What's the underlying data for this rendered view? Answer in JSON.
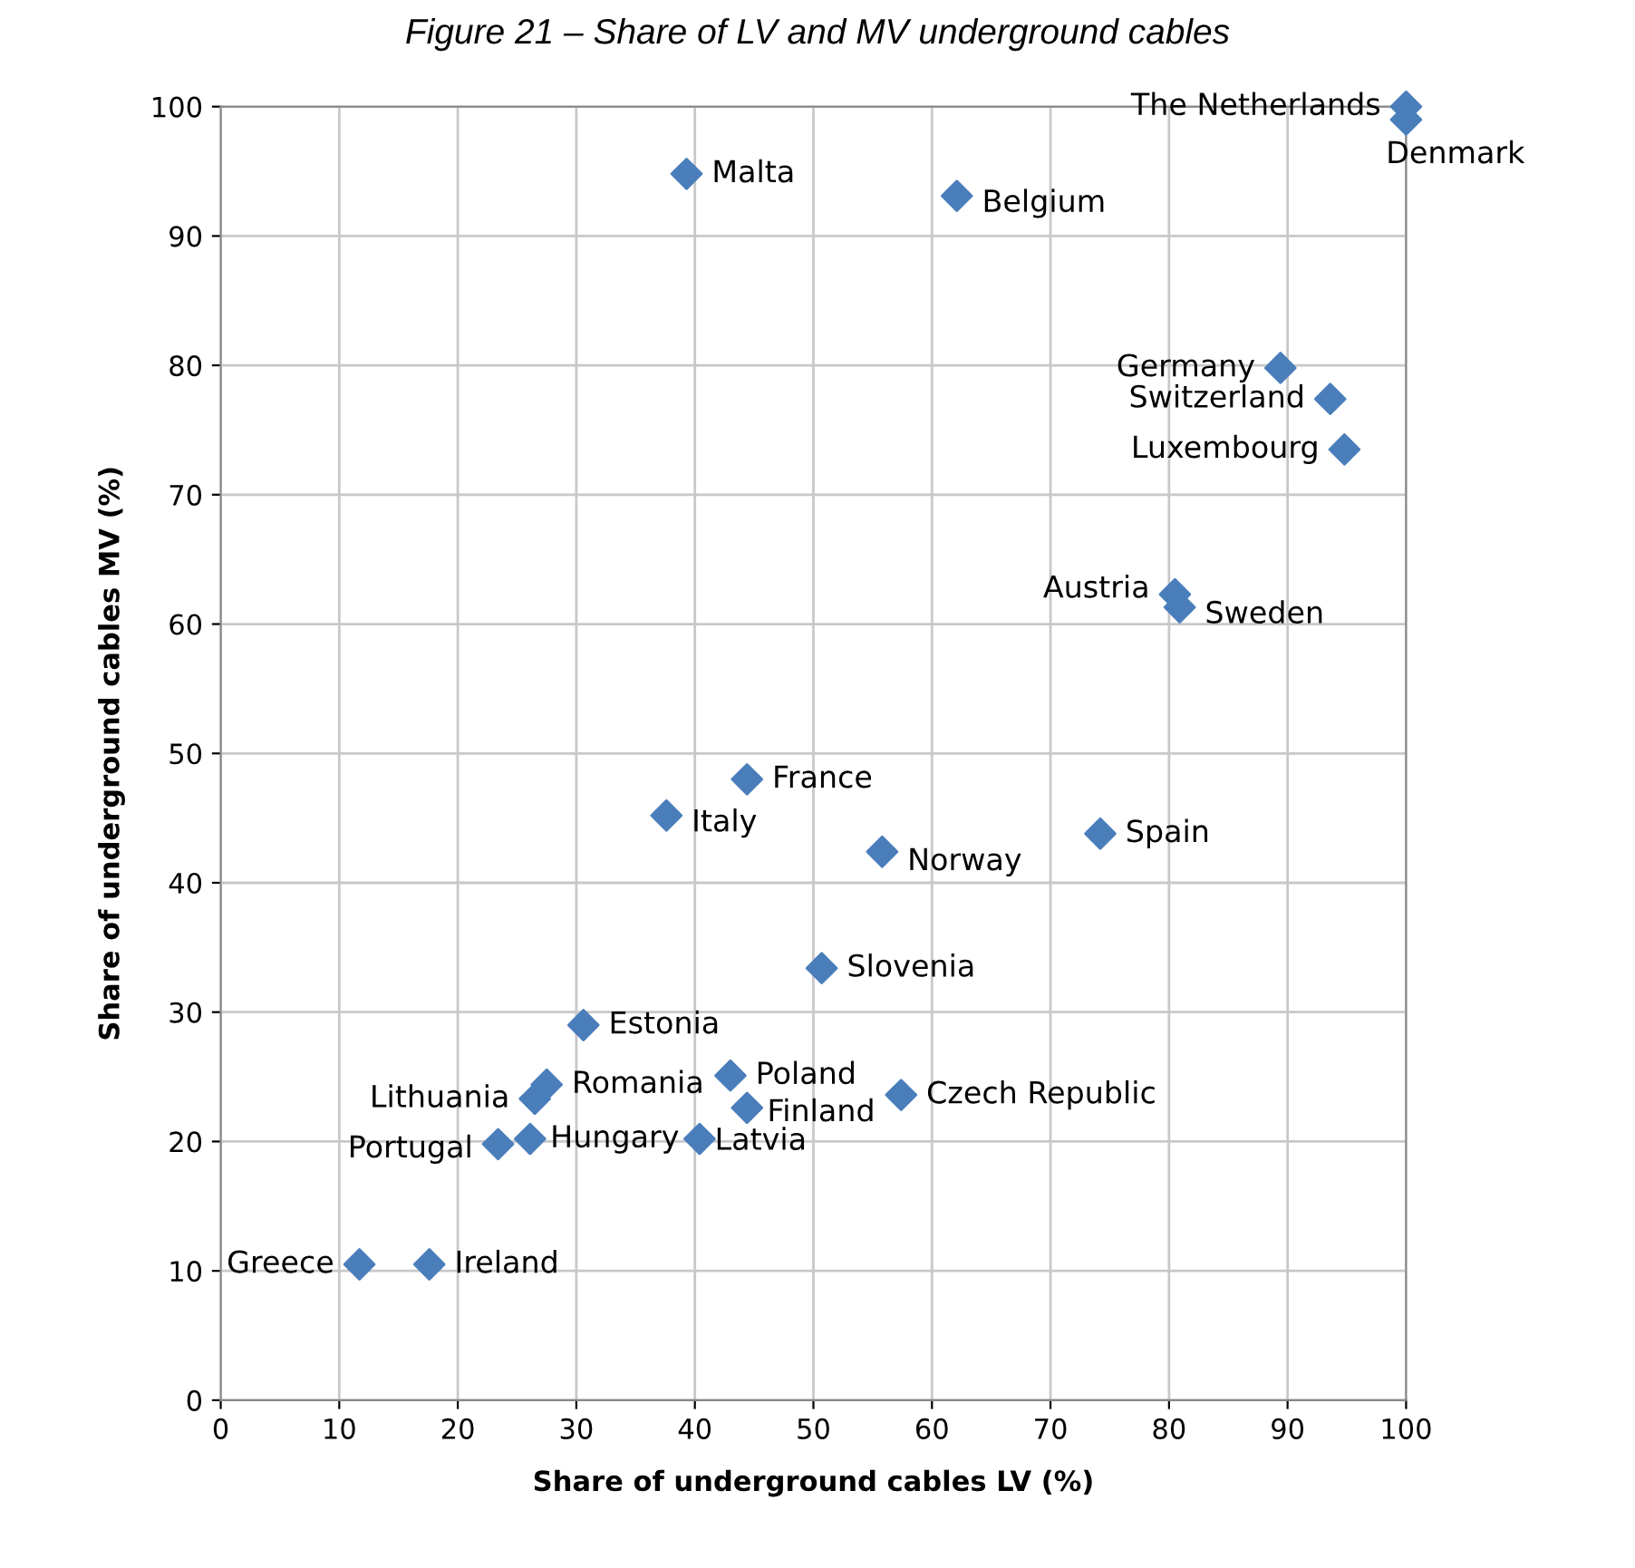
{
  "chart_data": {
    "type": "scatter",
    "title": "Figure 21 – Share of LV and MV underground cables",
    "xlabel": "Share of underground cables LV (%)",
    "ylabel": "Share of underground cables MV (%)",
    "xlim": [
      0,
      100
    ],
    "ylim": [
      0,
      100
    ],
    "xticks": [
      0,
      10,
      20,
      30,
      40,
      50,
      60,
      70,
      80,
      90,
      100
    ],
    "yticks": [
      0,
      10,
      20,
      30,
      40,
      50,
      60,
      70,
      80,
      90,
      100
    ],
    "grid": true,
    "marker": "diamond",
    "series": [
      {
        "color": "#4a7ebb",
        "x": [
          100,
          100,
          39.3,
          62.1,
          89.4,
          93.6,
          94.8,
          80.5,
          80.9,
          44.4,
          37.6,
          55.8,
          74.2,
          50.7,
          30.6,
          43.0,
          27.5,
          26.5,
          44.4,
          57.4,
          40.4,
          26.1,
          23.4,
          11.7,
          17.6
        ],
        "values": [
          100,
          99,
          94.8,
          93.1,
          79.8,
          77.4,
          73.5,
          62.3,
          61.3,
          48.0,
          45.2,
          42.4,
          43.8,
          33.4,
          29.0,
          25.1,
          24.4,
          23.3,
          22.6,
          23.6,
          20.2,
          20.2,
          19.8,
          10.5,
          10.5
        ]
      }
    ],
    "annotations": [
      {
        "text": "The Netherlands",
        "x": 100,
        "y": 100
      },
      {
        "text": "Denmark",
        "x": 100,
        "y": 99
      },
      {
        "text": "Malta",
        "x": 39.3,
        "y": 94.8
      },
      {
        "text": "Belgium",
        "x": 62.1,
        "y": 93.1
      },
      {
        "text": "Germany",
        "x": 89.4,
        "y": 79.8
      },
      {
        "text": "Switzerland",
        "x": 93.6,
        "y": 77.4
      },
      {
        "text": "Luxembourg",
        "x": 94.8,
        "y": 73.5
      },
      {
        "text": "Austria",
        "x": 80.5,
        "y": 62.3
      },
      {
        "text": "Sweden",
        "x": 80.9,
        "y": 61.3
      },
      {
        "text": "France",
        "x": 44.4,
        "y": 48.0
      },
      {
        "text": "Italy",
        "x": 37.6,
        "y": 45.2
      },
      {
        "text": "Norway",
        "x": 55.8,
        "y": 42.4
      },
      {
        "text": "Spain",
        "x": 74.2,
        "y": 43.8
      },
      {
        "text": "Slovenia",
        "x": 50.7,
        "y": 33.4
      },
      {
        "text": "Estonia",
        "x": 30.6,
        "y": 29.0
      },
      {
        "text": "Poland",
        "x": 43.0,
        "y": 25.1
      },
      {
        "text": "Romania",
        "x": 27.5,
        "y": 24.4
      },
      {
        "text": "Lithuania",
        "x": 26.5,
        "y": 23.3
      },
      {
        "text": "Finland",
        "x": 44.4,
        "y": 22.6
      },
      {
        "text": "Czech Republic",
        "x": 57.4,
        "y": 23.6
      },
      {
        "text": "Latvia",
        "x": 40.4,
        "y": 20.2
      },
      {
        "text": "Hungary",
        "x": 26.1,
        "y": 20.2
      },
      {
        "text": "Portugal",
        "x": 23.4,
        "y": 19.8
      },
      {
        "text": "Greece",
        "x": 11.7,
        "y": 10.5
      },
      {
        "text": "Ireland",
        "x": 17.6,
        "y": 10.5
      }
    ]
  }
}
